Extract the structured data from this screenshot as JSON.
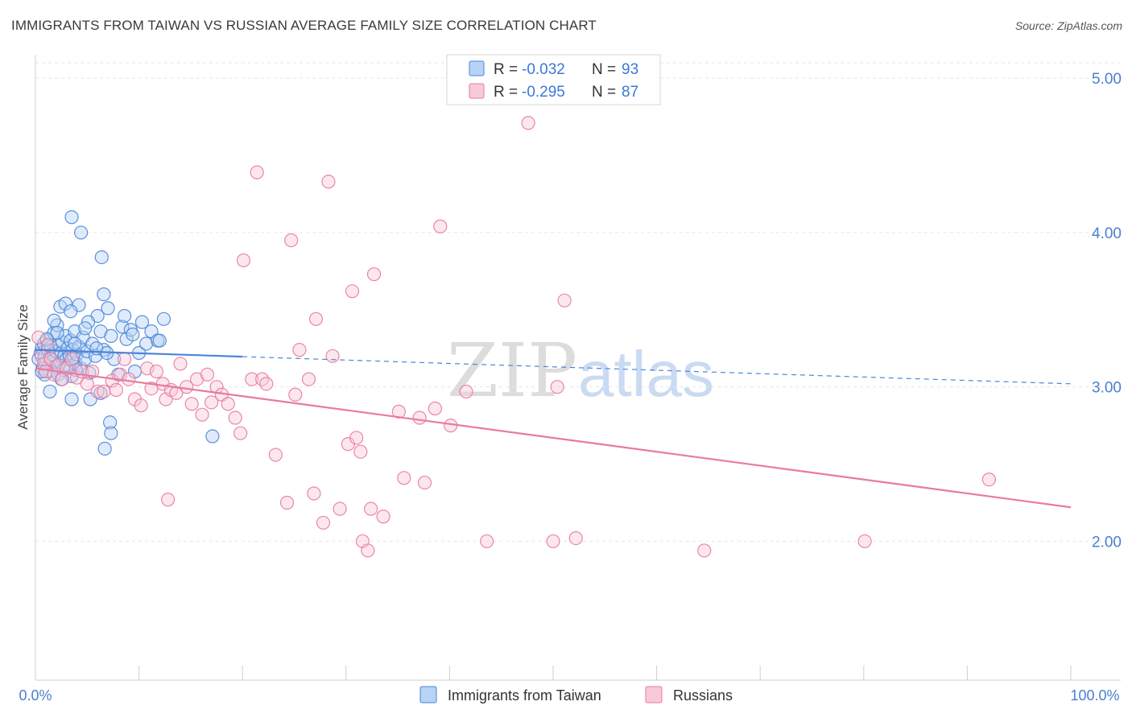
{
  "title": "IMMIGRANTS FROM TAIWAN VS RUSSIAN AVERAGE FAMILY SIZE CORRELATION CHART",
  "source": "Source: ZipAtlas.com",
  "watermark": {
    "zip": "ZIP",
    "atlas": "atlas"
  },
  "chart_data": {
    "type": "scatter",
    "title": "IMMIGRANTS FROM TAIWAN VS RUSSIAN AVERAGE FAMILY SIZE CORRELATION CHART",
    "xlabel": "",
    "ylabel": "Average Family Size",
    "xlim": [
      0,
      100
    ],
    "ylim": [
      1.1,
      5.1
    ],
    "x_tick_labels": [
      "0.0%",
      "100.0%"
    ],
    "y_ticks": [
      2.0,
      3.0,
      4.0,
      5.0
    ],
    "y_tick_labels": [
      "2.00",
      "3.00",
      "4.00",
      "5.00"
    ],
    "grid": true,
    "legend_position": "top-center",
    "colors": {
      "taiwan": "#4a86d8",
      "russians": "#e87aa0",
      "taiwan_fill": "#b8d3f4",
      "russians_fill": "#f8c9d8"
    },
    "series": [
      {
        "name": "Immigrants from Taiwan",
        "R": "-0.032",
        "N": "93",
        "trend": {
          "x0": 0,
          "y0": 3.24,
          "x1": 100,
          "y1": 3.02,
          "solid_until": 20
        },
        "points": [
          [
            0.3,
            3.18
          ],
          [
            0.5,
            3.22
          ],
          [
            0.6,
            3.25
          ],
          [
            0.7,
            3.12
          ],
          [
            0.8,
            3.28
          ],
          [
            0.9,
            3.2
          ],
          [
            1.0,
            3.15
          ],
          [
            1.1,
            3.3
          ],
          [
            1.2,
            3.24
          ],
          [
            1.3,
            3.1
          ],
          [
            1.4,
            3.19
          ],
          [
            1.5,
            3.26
          ],
          [
            1.6,
            3.21
          ],
          [
            1.7,
            3.17
          ],
          [
            1.8,
            3.35
          ],
          [
            1.9,
            3.13
          ],
          [
            2.0,
            3.23
          ],
          [
            2.1,
            3.4
          ],
          [
            2.2,
            3.08
          ],
          [
            2.3,
            3.27
          ],
          [
            2.4,
            3.16
          ],
          [
            2.5,
            3.22
          ],
          [
            2.6,
            3.29
          ],
          [
            2.7,
            3.11
          ],
          [
            2.8,
            3.2
          ],
          [
            2.9,
            3.33
          ],
          [
            3.0,
            3.18
          ],
          [
            3.1,
            3.25
          ],
          [
            3.2,
            3.14
          ],
          [
            3.3,
            3.2
          ],
          [
            3.4,
            3.3
          ],
          [
            3.5,
            3.07
          ],
          [
            3.6,
            3.24
          ],
          [
            3.7,
            3.19
          ],
          [
            3.8,
            3.36
          ],
          [
            3.9,
            3.15
          ],
          [
            4.0,
            3.21
          ],
          [
            4.2,
            3.26
          ],
          [
            4.4,
            3.12
          ],
          [
            4.6,
            3.32
          ],
          [
            4.8,
            3.18
          ],
          [
            5.0,
            3.23
          ],
          [
            5.2,
            3.09
          ],
          [
            5.5,
            3.28
          ],
          [
            5.8,
            3.2
          ],
          [
            6.0,
            3.46
          ],
          [
            6.3,
            3.36
          ],
          [
            6.6,
            3.24
          ],
          [
            7.0,
            3.51
          ],
          [
            7.3,
            3.33
          ],
          [
            7.6,
            3.18
          ],
          [
            8.0,
            3.08
          ],
          [
            8.4,
            3.39
          ],
          [
            8.8,
            3.31
          ],
          [
            9.2,
            3.37
          ],
          [
            9.6,
            3.1
          ],
          [
            10.0,
            3.22
          ],
          [
            10.3,
            3.42
          ],
          [
            10.7,
            3.28
          ],
          [
            11.2,
            3.36
          ],
          [
            11.8,
            3.3
          ],
          [
            12.4,
            3.44
          ],
          [
            0.9,
            3.08
          ],
          [
            1.4,
            2.97
          ],
          [
            3.5,
            2.92
          ],
          [
            5.3,
            2.92
          ],
          [
            6.3,
            2.96
          ],
          [
            7.2,
            2.77
          ],
          [
            2.4,
            3.52
          ],
          [
            4.2,
            3.53
          ],
          [
            5.1,
            3.42
          ],
          [
            6.6,
            3.6
          ],
          [
            8.6,
            3.46
          ],
          [
            2.9,
            3.54
          ],
          [
            3.4,
            3.49
          ],
          [
            1.8,
            3.43
          ],
          [
            4.8,
            3.38
          ],
          [
            2.1,
            3.35
          ],
          [
            3.8,
            3.28
          ],
          [
            0.6,
            3.1
          ],
          [
            3.5,
            4.1
          ],
          [
            4.4,
            4.0
          ],
          [
            6.4,
            3.84
          ],
          [
            6.7,
            2.6
          ],
          [
            7.3,
            2.7
          ],
          [
            17.1,
            2.68
          ],
          [
            12.0,
            3.3
          ],
          [
            9.4,
            3.34
          ],
          [
            5.9,
            3.25
          ],
          [
            1.1,
            3.31
          ],
          [
            2.5,
            3.05
          ],
          [
            3.9,
            3.11
          ],
          [
            6.9,
            3.22
          ]
        ]
      },
      {
        "name": "Russians",
        "R": "-0.295",
        "N": "87",
        "trend": {
          "x0": 0,
          "y0": 3.12,
          "x1": 100,
          "y1": 2.22
        },
        "points": [
          [
            0.3,
            3.32
          ],
          [
            0.6,
            3.2
          ],
          [
            0.8,
            3.15
          ],
          [
            1.0,
            3.1
          ],
          [
            1.2,
            3.27
          ],
          [
            1.5,
            3.18
          ],
          [
            1.8,
            3.08
          ],
          [
            2.2,
            3.14
          ],
          [
            2.6,
            3.05
          ],
          [
            3.0,
            3.12
          ],
          [
            3.5,
            3.18
          ],
          [
            4.0,
            3.06
          ],
          [
            4.5,
            3.1
          ],
          [
            5.0,
            3.02
          ],
          [
            5.5,
            3.1
          ],
          [
            6.0,
            2.97
          ],
          [
            6.6,
            2.97
          ],
          [
            7.4,
            3.04
          ],
          [
            7.8,
            2.98
          ],
          [
            8.2,
            3.08
          ],
          [
            8.6,
            3.18
          ],
          [
            9.0,
            3.05
          ],
          [
            9.6,
            2.92
          ],
          [
            10.2,
            2.88
          ],
          [
            10.8,
            3.12
          ],
          [
            11.2,
            2.99
          ],
          [
            11.7,
            3.1
          ],
          [
            12.3,
            3.02
          ],
          [
            12.6,
            2.92
          ],
          [
            13.1,
            2.98
          ],
          [
            13.6,
            2.96
          ],
          [
            14.0,
            3.15
          ],
          [
            14.6,
            3.0
          ],
          [
            15.1,
            2.89
          ],
          [
            15.6,
            3.05
          ],
          [
            16.1,
            2.82
          ],
          [
            16.6,
            3.08
          ],
          [
            17.0,
            2.9
          ],
          [
            17.5,
            3.0
          ],
          [
            18.0,
            2.95
          ],
          [
            18.6,
            2.89
          ],
          [
            19.3,
            2.8
          ],
          [
            19.8,
            2.7
          ],
          [
            20.9,
            3.05
          ],
          [
            21.9,
            3.05
          ],
          [
            22.3,
            3.02
          ],
          [
            23.2,
            2.56
          ],
          [
            24.3,
            2.25
          ],
          [
            24.7,
            3.95
          ],
          [
            25.1,
            2.95
          ],
          [
            25.5,
            3.24
          ],
          [
            26.4,
            3.05
          ],
          [
            26.9,
            2.31
          ],
          [
            27.1,
            3.44
          ],
          [
            27.8,
            2.12
          ],
          [
            28.7,
            3.2
          ],
          [
            29.4,
            2.21
          ],
          [
            30.2,
            2.63
          ],
          [
            30.6,
            3.62
          ],
          [
            31.0,
            2.67
          ],
          [
            31.4,
            2.58
          ],
          [
            31.6,
            2.0
          ],
          [
            32.1,
            1.94
          ],
          [
            32.4,
            2.21
          ],
          [
            32.7,
            3.73
          ],
          [
            33.6,
            2.16
          ],
          [
            35.1,
            2.84
          ],
          [
            35.6,
            2.41
          ],
          [
            37.1,
            2.8
          ],
          [
            37.6,
            2.38
          ],
          [
            38.6,
            2.86
          ],
          [
            39.1,
            4.04
          ],
          [
            40.1,
            2.75
          ],
          [
            41.6,
            2.97
          ],
          [
            43.6,
            2.0
          ],
          [
            47.6,
            4.71
          ],
          [
            50.0,
            2.0
          ],
          [
            50.4,
            3.0
          ],
          [
            51.1,
            3.56
          ],
          [
            52.2,
            2.02
          ],
          [
            64.6,
            1.94
          ],
          [
            80.1,
            2.0
          ],
          [
            92.1,
            2.4
          ],
          [
            12.8,
            2.27
          ],
          [
            20.1,
            3.82
          ],
          [
            21.4,
            4.39
          ],
          [
            28.3,
            4.33
          ]
        ]
      }
    ]
  }
}
